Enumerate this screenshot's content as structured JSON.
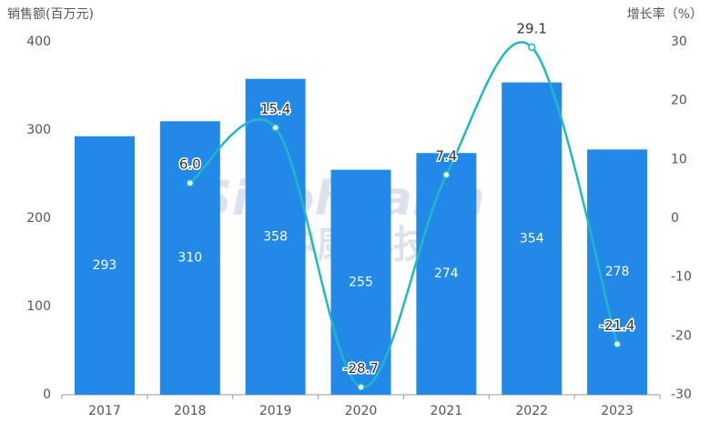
{
  "chart_data": {
    "type": "bar",
    "watermark": [
      "Sinohealth",
      "中康科技"
    ],
    "ylabel": "销售额(百万元)",
    "y2label": "增长率（%）",
    "categories": [
      "2017",
      "2018",
      "2019",
      "2020",
      "2021",
      "2022",
      "2023"
    ],
    "ylim": [
      0,
      400
    ],
    "yticks": [
      0,
      100,
      200,
      300,
      400
    ],
    "y2lim": [
      -30,
      30
    ],
    "y2ticks": [
      -30,
      -20,
      -10,
      0,
      10,
      20,
      30
    ],
    "series": [
      {
        "type": "bar",
        "color": "#2389e8",
        "values": [
          293,
          310,
          358,
          255,
          274,
          354,
          278
        ]
      },
      {
        "type": "line",
        "axis": "y2",
        "color": "#1fb9c5",
        "values": [
          null,
          6.0,
          15.4,
          -28.7,
          7.4,
          29.1,
          -21.4
        ],
        "value_labels": [
          null,
          "6.0",
          "15.4",
          "-28.7",
          "7.4",
          "29.1",
          "-21.4"
        ]
      }
    ]
  }
}
